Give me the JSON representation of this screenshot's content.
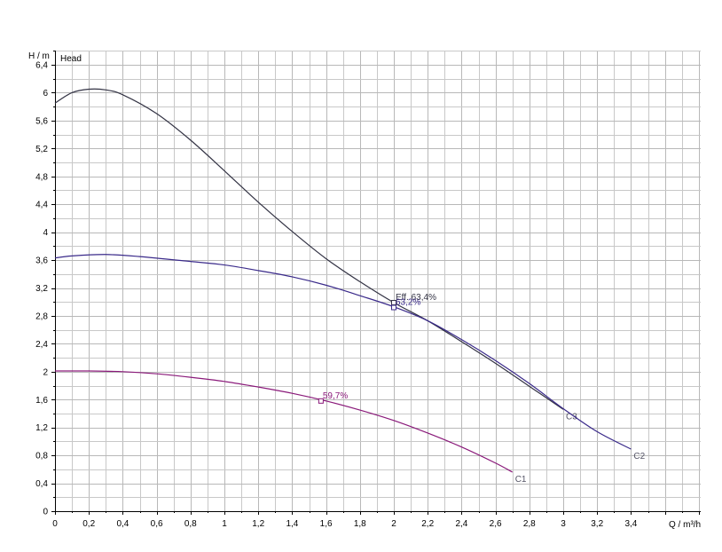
{
  "chart_data": {
    "type": "line",
    "ylabel": "H / m",
    "xlabel": "Q / m³/h",
    "legend": "Head",
    "xlim": [
      0,
      3.8
    ],
    "ylim": [
      0,
      6.4
    ],
    "xticks": [
      "0",
      "0,2",
      "0,4",
      "0,6",
      "0,8",
      "1",
      "1,2",
      "1,4",
      "1,6",
      "1,8",
      "2",
      "2,2",
      "2,4",
      "2,6",
      "2,8",
      "3",
      "3,2",
      "3,4"
    ],
    "yticks": [
      "0",
      "0,4",
      "0,8",
      "1,2",
      "1,6",
      "2",
      "2,4",
      "2,8",
      "3,2",
      "3,6",
      "4",
      "4,4",
      "4,8",
      "5,2",
      "5,6",
      "6",
      "6,4"
    ],
    "series": [
      {
        "name": "C3",
        "color": "#333344",
        "x": [
          0,
          0.1,
          0.2,
          0.3,
          0.4,
          0.6,
          0.8,
          1.0,
          1.2,
          1.4,
          1.6,
          1.8,
          2.0,
          2.2,
          2.4,
          2.6,
          2.8,
          3.0
        ],
        "y": [
          5.85,
          6.0,
          6.05,
          6.04,
          5.97,
          5.7,
          5.32,
          4.88,
          4.43,
          4.01,
          3.62,
          3.29,
          2.99,
          2.73,
          2.43,
          2.12,
          1.79,
          1.46
        ]
      },
      {
        "name": "C2",
        "color": "#3a2a8a",
        "x": [
          0,
          0.1,
          0.3,
          0.5,
          0.8,
          1.0,
          1.2,
          1.4,
          1.6,
          1.8,
          2.0,
          2.2,
          2.4,
          2.6,
          2.8,
          3.0,
          3.2,
          3.4
        ],
        "y": [
          3.63,
          3.66,
          3.68,
          3.65,
          3.58,
          3.53,
          3.45,
          3.36,
          3.24,
          3.09,
          2.93,
          2.73,
          2.46,
          2.16,
          1.83,
          1.47,
          1.14,
          0.89
        ]
      },
      {
        "name": "C1",
        "color": "#8a1a7a",
        "x": [
          0,
          0.2,
          0.4,
          0.6,
          0.8,
          1.0,
          1.2,
          1.4,
          1.6,
          1.8,
          2.0,
          2.2,
          2.4,
          2.6,
          2.7
        ],
        "y": [
          2.01,
          2.01,
          2.0,
          1.97,
          1.92,
          1.86,
          1.78,
          1.69,
          1.58,
          1.45,
          1.3,
          1.12,
          0.92,
          0.69,
          0.56
        ]
      }
    ],
    "annotations": [
      {
        "text": "Eff.  63,4%",
        "x": 2.0,
        "y": 2.99,
        "color": "#333344"
      },
      {
        "text": "63,2%",
        "x": 2.0,
        "y": 2.92,
        "color": "#3a2a8a"
      },
      {
        "text": "59,7%",
        "x": 1.57,
        "y": 1.58,
        "color": "#8a1a7a"
      }
    ]
  }
}
